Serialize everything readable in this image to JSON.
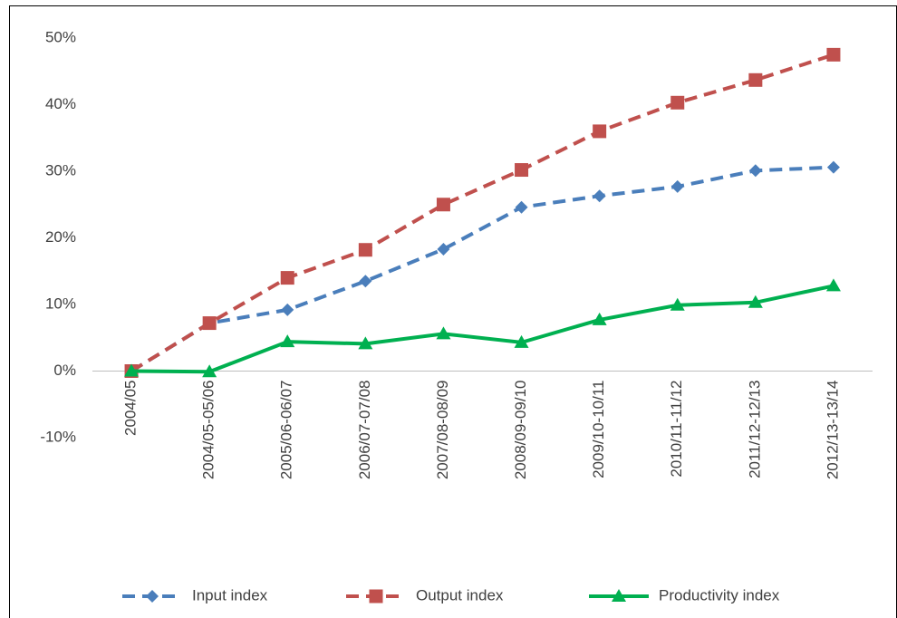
{
  "chart_data": {
    "type": "line",
    "categories": [
      "2004/05",
      "2004/05-05/06",
      "2005/06-06/07",
      "2006/07-07/08",
      "2007/08-08/09",
      "2008/09-09/10",
      "2009/10-10/11",
      "2010/11-11/12",
      "2011/12-12/13",
      "2012/13-13/14"
    ],
    "series": [
      {
        "name": "Input index",
        "color": "#4a7ebb",
        "dash": true,
        "marker": "diamond",
        "values": [
          0,
          7.2,
          9.2,
          13.5,
          18.3,
          24.6,
          26.3,
          27.7,
          30.1,
          30.6
        ]
      },
      {
        "name": "Output index",
        "color": "#c0504d",
        "dash": true,
        "marker": "square",
        "values": [
          0,
          7.2,
          14.0,
          18.2,
          25.0,
          30.2,
          36.0,
          40.3,
          43.7,
          47.5
        ]
      },
      {
        "name": "Productivity index",
        "color": "#00b050",
        "dash": false,
        "marker": "triangle",
        "values": [
          0,
          -0.1,
          4.4,
          4.1,
          5.6,
          4.3,
          7.7,
          9.9,
          10.3,
          12.8
        ]
      }
    ],
    "ylim": [
      -10,
      50
    ],
    "yticks": [
      {
        "value": -10,
        "label": "-10%"
      },
      {
        "value": 0,
        "label": "0%"
      },
      {
        "value": 10,
        "label": "10%"
      },
      {
        "value": 20,
        "label": "20%"
      },
      {
        "value": 30,
        "label": "30%"
      },
      {
        "value": 40,
        "label": "40%"
      },
      {
        "value": 50,
        "label": "50%"
      }
    ],
    "grid": false,
    "legend": "bottom"
  }
}
